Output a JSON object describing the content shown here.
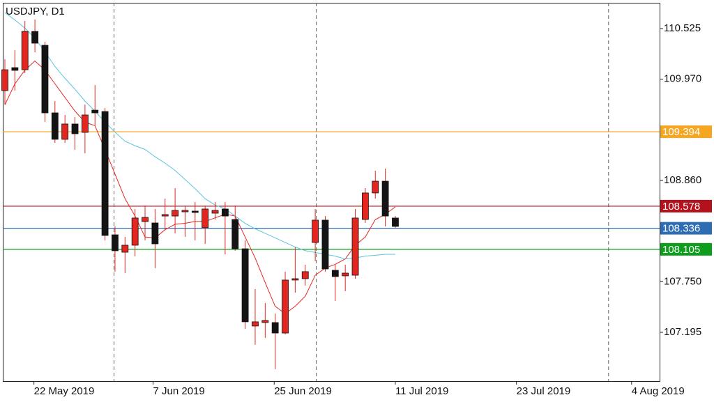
{
  "chart_data": {
    "type": "candlestick",
    "title": "USDJPY, D1",
    "x": [
      0,
      1,
      2,
      3,
      4,
      5,
      6,
      7,
      8,
      9,
      10,
      11,
      12,
      13,
      14,
      15,
      16,
      17,
      18,
      19,
      20,
      21,
      22,
      23,
      24,
      25,
      26,
      27,
      28,
      29,
      30,
      31,
      32,
      33,
      34,
      35,
      36,
      37,
      38,
      39
    ],
    "open": [
      109.845,
      110.097,
      110.074,
      110.494,
      110.342,
      109.601,
      109.311,
      109.479,
      109.387,
      109.631,
      109.616,
      108.264,
      108.073,
      108.15,
      108.409,
      108.394,
      108.47,
      108.47,
      108.516,
      108.524,
      108.341,
      108.501,
      108.547,
      108.432,
      108.111,
      107.264,
      107.302,
      107.302,
      107.187,
      107.768,
      107.783,
      108.18,
      108.425,
      107.875,
      107.814,
      107.821,
      108.432,
      108.723,
      108.852,
      108.448
    ],
    "high": [
      110.189,
      110.288,
      110.609,
      110.624,
      110.38,
      109.731,
      109.578,
      109.555,
      109.692,
      109.906,
      109.654,
      108.356,
      108.241,
      108.547,
      108.585,
      108.547,
      108.661,
      108.776,
      108.585,
      108.623,
      108.585,
      108.623,
      108.623,
      108.585,
      108.203,
      107.669,
      107.516,
      107.401,
      107.86,
      108.127,
      107.936,
      108.547,
      108.47,
      107.936,
      107.936,
      108.547,
      108.776,
      108.967,
      108.99,
      108.47
    ],
    "low": [
      109.692,
      109.845,
      110.036,
      110.265,
      109.502,
      109.272,
      109.272,
      109.196,
      109.158,
      109.463,
      108.203,
      107.86,
      107.844,
      108.028,
      108.203,
      107.898,
      108.318,
      108.28,
      108.241,
      108.203,
      108.165,
      108.432,
      108.05,
      108.089,
      107.233,
      107.058,
      107.134,
      106.791,
      107.172,
      107.63,
      107.707,
      107.974,
      107.86,
      107.539,
      107.646,
      107.783,
      108.394,
      108.661,
      108.356,
      108.341
    ],
    "close": [
      110.074,
      110.067,
      110.494,
      110.365,
      109.601,
      109.311,
      109.479,
      109.372,
      109.578,
      109.601,
      108.257,
      108.089,
      108.15,
      108.448,
      108.455,
      108.165,
      108.486,
      108.532,
      108.532,
      108.509,
      108.547,
      108.532,
      108.47,
      108.111,
      107.31,
      107.31,
      107.325,
      107.187,
      107.768,
      107.783,
      107.86,
      108.425,
      107.89,
      107.806,
      107.844,
      108.448,
      108.723,
      108.852,
      108.47,
      108.356
    ],
    "up_color": "#e3261f",
    "down_color": "#141414",
    "wick_color": "#e3261f",
    "lines": [
      {
        "color": "#e3261f",
        "values": [
          109.69,
          109.92,
          110.07,
          110.17,
          110.07,
          109.92,
          109.77,
          109.62,
          109.5,
          109.46,
          109.2,
          108.93,
          108.66,
          108.47,
          108.24,
          108.23,
          108.32,
          108.38,
          108.39,
          108.41,
          108.41,
          108.45,
          108.49,
          108.47,
          108.24,
          108.01,
          107.74,
          107.48,
          107.4,
          107.48,
          107.59,
          107.82,
          107.9,
          107.94,
          108.0,
          108.15,
          108.24,
          108.43,
          108.49,
          108.57
        ]
      },
      {
        "color": "#5bc3e0",
        "values": [
          110.7,
          110.62,
          110.53,
          110.42,
          110.27,
          110.11,
          109.98,
          109.86,
          109.73,
          109.62,
          109.5,
          109.39,
          109.29,
          109.24,
          109.2,
          109.12,
          109.05,
          108.97,
          108.87,
          108.77,
          108.66,
          108.59,
          108.55,
          108.47,
          108.39,
          108.33,
          108.28,
          108.23,
          108.18,
          108.13,
          108.09,
          108.07,
          108.05,
          108.03,
          108.0,
          108.01,
          108.03,
          108.04,
          108.05,
          108.05
        ]
      }
    ],
    "levels": [
      {
        "value": 109.394,
        "color": "#f5a623"
      },
      {
        "value": 108.578,
        "color": "#b3121d"
      },
      {
        "value": 108.336,
        "color": "#2e6db4"
      },
      {
        "value": 108.105,
        "color": "#0f9d1e"
      }
    ],
    "separators": [
      10.9,
      31.1,
      60.3
    ],
    "xlim": [
      -0.21,
      65.4
    ],
    "ylim": [
      106.66,
      110.808
    ],
    "yticks": [
      110.525,
      {
        "value": 109.97,
        "label": "109.970"
      },
      {
        "value": 108.86,
        "label": "108.860"
      },
      {
        "value": 107.75,
        "label": "107.750"
      },
      107.195
    ],
    "xticks": [
      {
        "value": 2.9,
        "label": "22 May 2019"
      },
      {
        "value": 14.8,
        "label": "7 Jun 2019"
      },
      {
        "value": 26.9,
        "label": "25 Jun 2019"
      },
      {
        "value": 39.0,
        "label": "11 Jul 2019"
      },
      {
        "value": 51.1,
        "label": "23 Jul 2019"
      },
      {
        "value": 62.6,
        "label": "4 Aug 2019"
      }
    ]
  }
}
